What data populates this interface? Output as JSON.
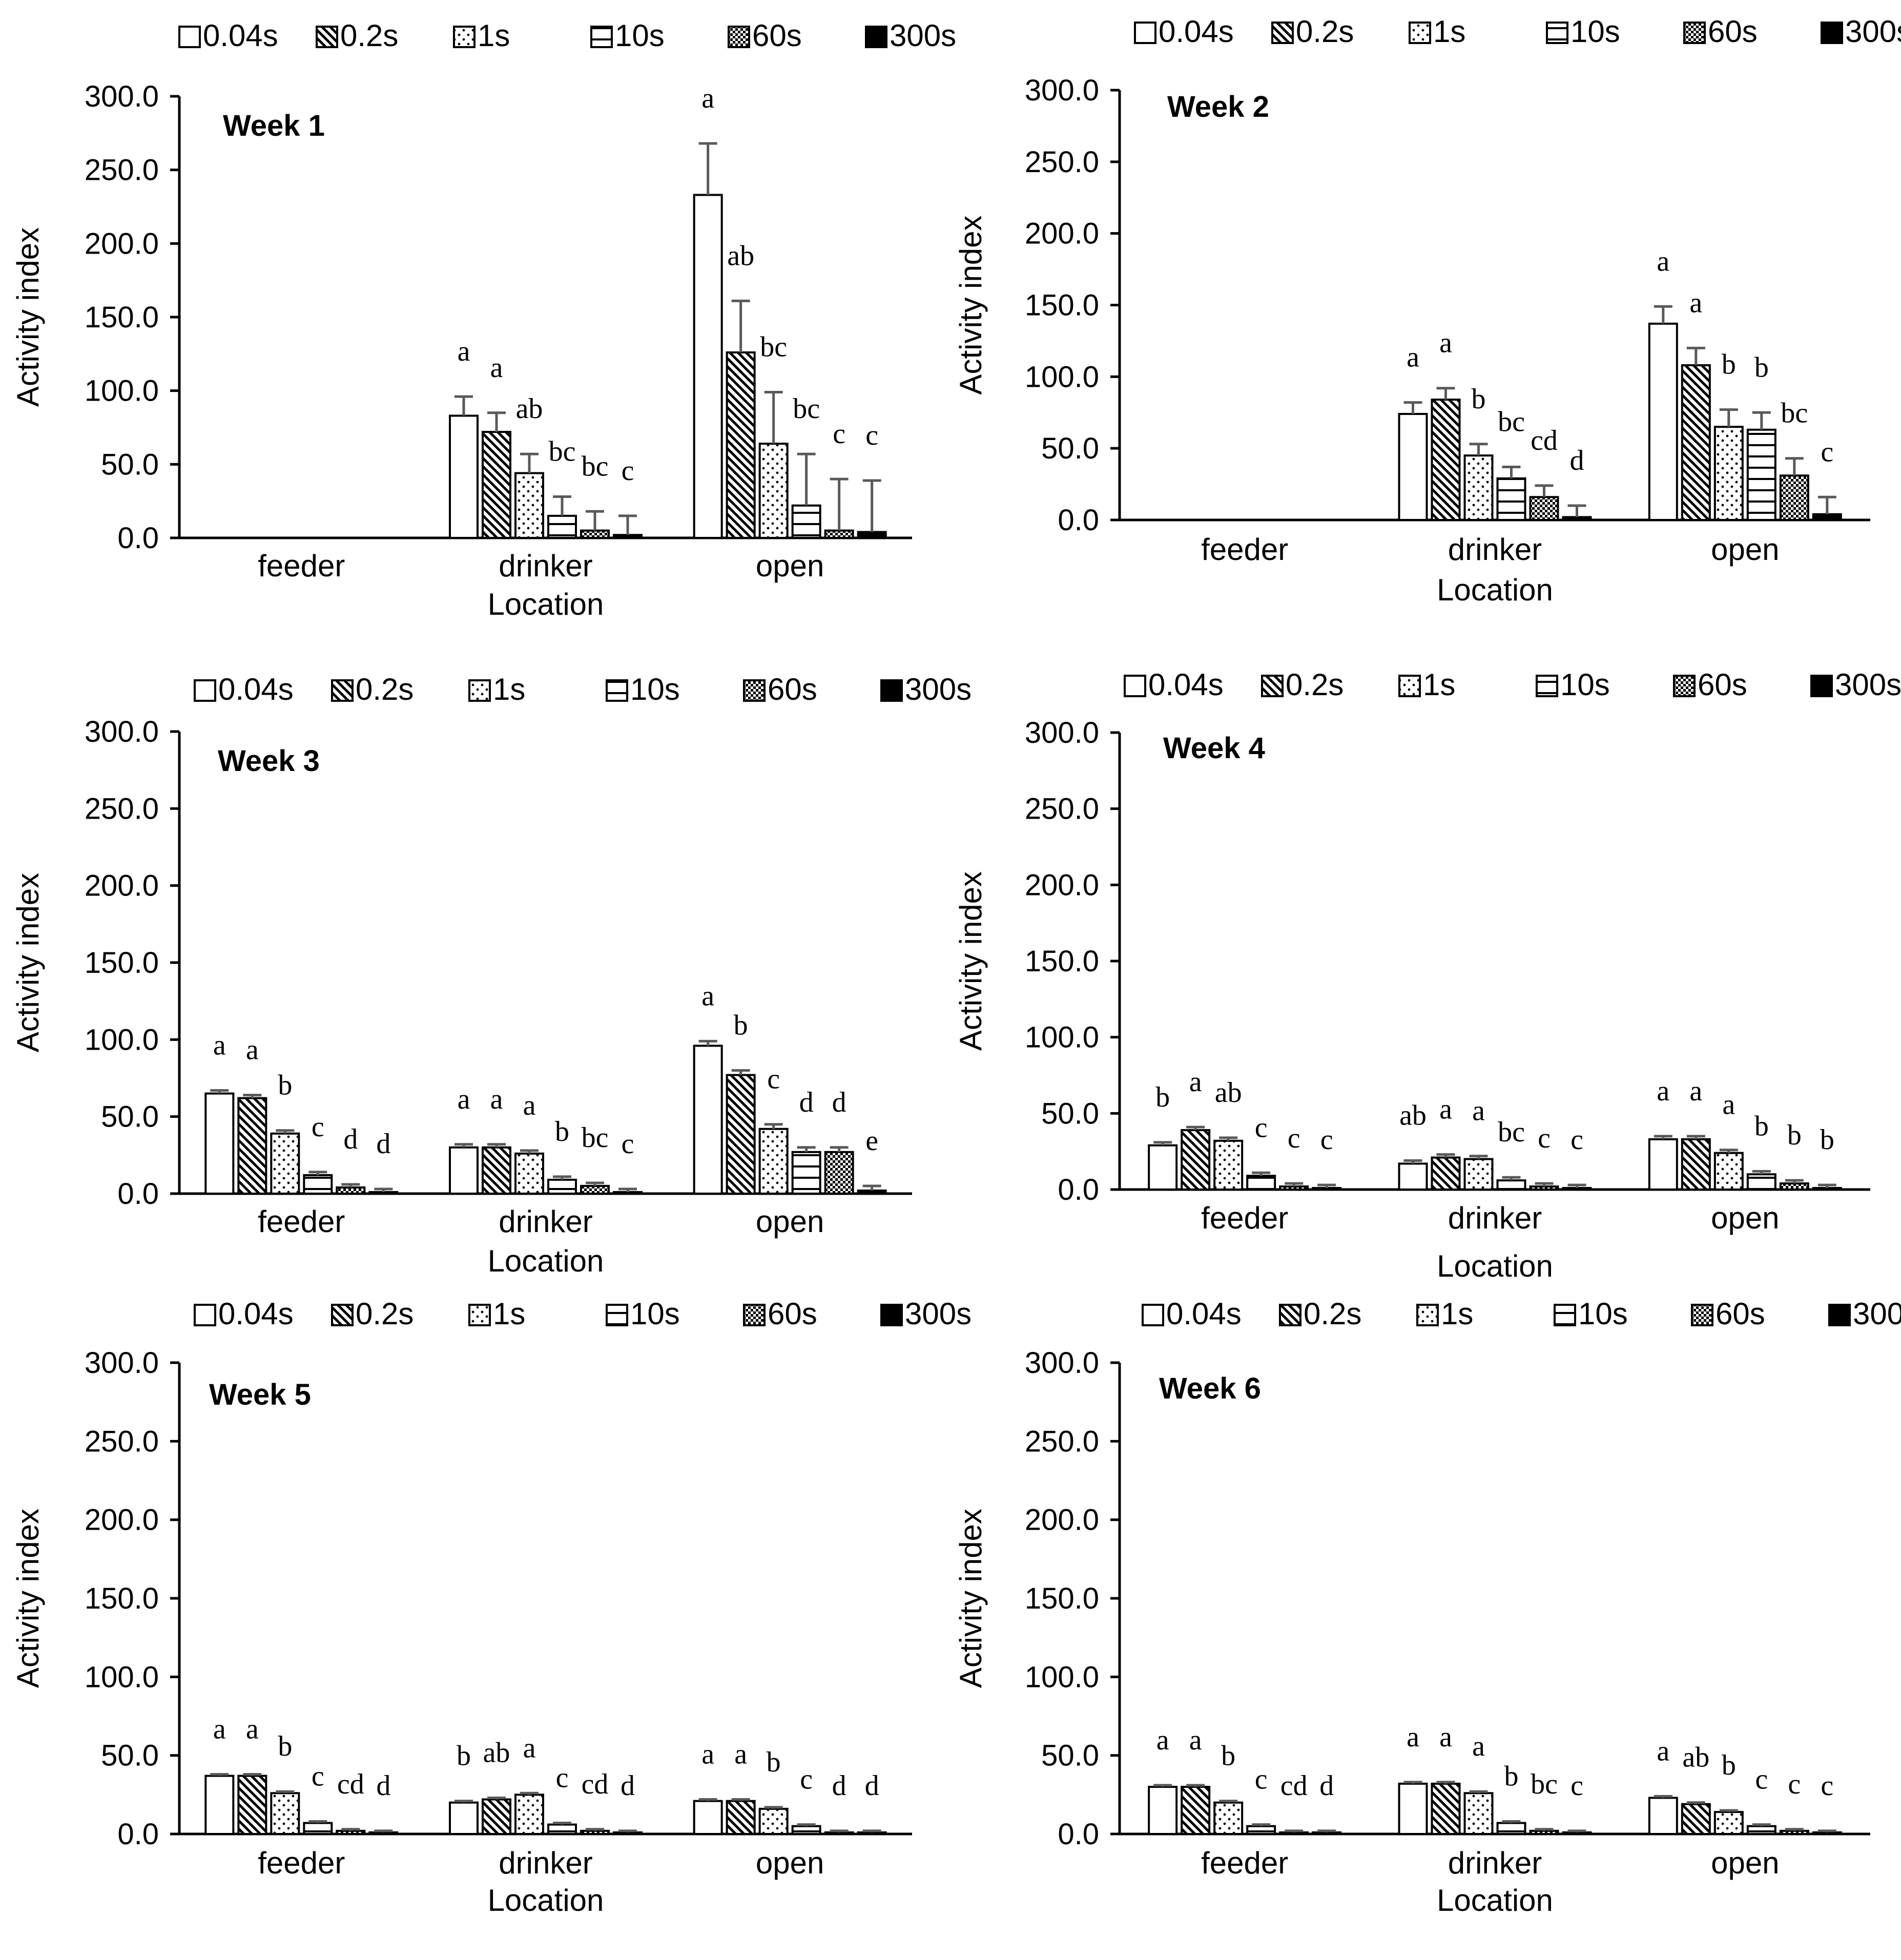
{
  "figure": {
    "y_axis_label": "Activity index",
    "x_axis_label": "Location"
  },
  "legend": [
    {
      "label": "0.04s",
      "pattern": "open"
    },
    {
      "label": "0.2s",
      "pattern": "diag"
    },
    {
      "label": "1s",
      "pattern": "dots"
    },
    {
      "label": "10s",
      "pattern": "hlines"
    },
    {
      "label": "60s",
      "pattern": "check"
    },
    {
      "label": "300s",
      "pattern": "solid"
    }
  ],
  "colors": {
    "bar_outline": "#000000",
    "error_bar": "#595959",
    "axis": "#000000",
    "background": "#ffffff"
  },
  "chart_data": [
    {
      "type": "bar",
      "title": "Week 1",
      "categories": [
        "feeder",
        "drinker",
        "open"
      ],
      "xlabel": "Location",
      "ylabel": "Activity index",
      "ylim": [
        0,
        300
      ],
      "yticks": [
        "0.0",
        "50.0",
        "100.0",
        "150.0",
        "200.0",
        "250.0",
        "300.0"
      ],
      "series": [
        {
          "name": "0.04s",
          "values": [
            0,
            83,
            233
          ],
          "errors": [
            0,
            13,
            35
          ]
        },
        {
          "name": "0.2s",
          "values": [
            0,
            72,
            126
          ],
          "errors": [
            0,
            13,
            35
          ]
        },
        {
          "name": "1s",
          "values": [
            0,
            44,
            64
          ],
          "errors": [
            0,
            13,
            35
          ]
        },
        {
          "name": "10s",
          "values": [
            0,
            15,
            22
          ],
          "errors": [
            0,
            13,
            35
          ]
        },
        {
          "name": "60s",
          "values": [
            0,
            5,
            5
          ],
          "errors": [
            0,
            13,
            35
          ]
        },
        {
          "name": "300s",
          "values": [
            0,
            2,
            4
          ],
          "errors": [
            0,
            13,
            35
          ]
        }
      ],
      "significance": [
        [
          "",
          "",
          "",
          "",
          "",
          ""
        ],
        [
          "a",
          "a",
          "ab",
          "bc",
          "bc",
          "c"
        ],
        [
          "a",
          "ab",
          "bc",
          "bc",
          "c",
          "c"
        ]
      ]
    },
    {
      "type": "bar",
      "title": "Week 2",
      "categories": [
        "feeder",
        "drinker",
        "open"
      ],
      "xlabel": "Location",
      "ylabel": "Activity index",
      "ylim": [
        0,
        300
      ],
      "yticks": [
        "0.0",
        "50.0",
        "100.0",
        "150.0",
        "200.0",
        "250.0",
        "300.0"
      ],
      "series": [
        {
          "name": "0.04s",
          "values": [
            0,
            74,
            137
          ],
          "errors": [
            0,
            8,
            12
          ]
        },
        {
          "name": "0.2s",
          "values": [
            0,
            84,
            108
          ],
          "errors": [
            0,
            8,
            12
          ]
        },
        {
          "name": "1s",
          "values": [
            0,
            45,
            65
          ],
          "errors": [
            0,
            8,
            12
          ]
        },
        {
          "name": "10s",
          "values": [
            0,
            29,
            63
          ],
          "errors": [
            0,
            8,
            12
          ]
        },
        {
          "name": "60s",
          "values": [
            0,
            16,
            31
          ],
          "errors": [
            0,
            8,
            12
          ]
        },
        {
          "name": "300s",
          "values": [
            0,
            2,
            4
          ],
          "errors": [
            0,
            8,
            12
          ]
        }
      ],
      "significance": [
        [
          "",
          "",
          "",
          "",
          "",
          ""
        ],
        [
          "a",
          "a",
          "b",
          "bc",
          "cd",
          "d"
        ],
        [
          "a",
          "a",
          "b",
          "b",
          "bc",
          "c"
        ]
      ]
    },
    {
      "type": "bar",
      "title": "Week 3",
      "categories": [
        "feeder",
        "drinker",
        "open"
      ],
      "xlabel": "Location",
      "ylabel": "Activity index",
      "ylim": [
        0,
        300
      ],
      "yticks": [
        "0.0",
        "50.0",
        "100.0",
        "150.0",
        "200.0",
        "250.0",
        "300.0"
      ],
      "series": [
        {
          "name": "0.04s",
          "values": [
            65,
            30,
            96
          ],
          "errors": [
            2,
            2,
            3
          ]
        },
        {
          "name": "0.2s",
          "values": [
            62,
            30,
            77
          ],
          "errors": [
            2,
            2,
            3
          ]
        },
        {
          "name": "1s",
          "values": [
            39,
            26,
            42
          ],
          "errors": [
            2,
            2,
            3
          ]
        },
        {
          "name": "10s",
          "values": [
            12,
            9,
            27
          ],
          "errors": [
            2,
            2,
            3
          ]
        },
        {
          "name": "60s",
          "values": [
            4,
            5,
            27
          ],
          "errors": [
            2,
            2,
            3
          ]
        },
        {
          "name": "300s",
          "values": [
            1,
            1,
            2
          ],
          "errors": [
            2,
            2,
            3
          ]
        }
      ],
      "significance": [
        [
          "a",
          "a",
          "b",
          "c",
          "d",
          "d"
        ],
        [
          "a",
          "a",
          "a",
          "b",
          "bc",
          "c"
        ],
        [
          "a",
          "b",
          "c",
          "d",
          "d",
          "e"
        ]
      ]
    },
    {
      "type": "bar",
      "title": "Week 4",
      "categories": [
        "feeder",
        "drinker",
        "open"
      ],
      "xlabel": "Location",
      "ylabel": "Activity index",
      "ylim": [
        0,
        300
      ],
      "yticks": [
        "0.0",
        "50.0",
        "100.0",
        "150.0",
        "200.0",
        "250.0",
        "300.0"
      ],
      "series": [
        {
          "name": "0.04s",
          "values": [
            29,
            17,
            33
          ],
          "errors": [
            2,
            2,
            2
          ]
        },
        {
          "name": "0.2s",
          "values": [
            39,
            21,
            33
          ],
          "errors": [
            2,
            2,
            2
          ]
        },
        {
          "name": "1s",
          "values": [
            32,
            20,
            24
          ],
          "errors": [
            2,
            2,
            2
          ]
        },
        {
          "name": "10s",
          "values": [
            9,
            6,
            10
          ],
          "errors": [
            2,
            2,
            2
          ]
        },
        {
          "name": "60s",
          "values": [
            2,
            2,
            4
          ],
          "errors": [
            2,
            2,
            2
          ]
        },
        {
          "name": "300s",
          "values": [
            1,
            1,
            1
          ],
          "errors": [
            2,
            2,
            2
          ]
        }
      ],
      "significance": [
        [
          "b",
          "a",
          "ab",
          "c",
          "c",
          "c"
        ],
        [
          "ab",
          "a",
          "a",
          "bc",
          "c",
          "c"
        ],
        [
          "a",
          "a",
          "a",
          "b",
          "b",
          "b"
        ]
      ]
    },
    {
      "type": "bar",
      "title": "Week 5",
      "categories": [
        "feeder",
        "drinker",
        "open"
      ],
      "xlabel": "Location",
      "ylabel": "Activity index",
      "ylim": [
        0,
        300
      ],
      "yticks": [
        "0.0",
        "50.0",
        "100.0",
        "150.0",
        "200.0",
        "250.0",
        "300.0"
      ],
      "series": [
        {
          "name": "0.04s",
          "values": [
            37,
            20,
            21
          ],
          "errors": [
            1,
            1,
            1
          ]
        },
        {
          "name": "0.2s",
          "values": [
            37,
            22,
            21
          ],
          "errors": [
            1,
            1,
            1
          ]
        },
        {
          "name": "1s",
          "values": [
            26,
            25,
            16
          ],
          "errors": [
            1,
            1,
            1
          ]
        },
        {
          "name": "10s",
          "values": [
            7,
            6,
            5
          ],
          "errors": [
            1,
            1,
            1
          ]
        },
        {
          "name": "60s",
          "values": [
            2,
            2,
            1
          ],
          "errors": [
            1,
            1,
            1
          ]
        },
        {
          "name": "300s",
          "values": [
            1,
            1,
            1
          ],
          "errors": [
            1,
            1,
            1
          ]
        }
      ],
      "significance": [
        [
          "a",
          "a",
          "b",
          "c",
          "cd",
          "d"
        ],
        [
          "b",
          "ab",
          "a",
          "c",
          "cd",
          "d"
        ],
        [
          "a",
          "a",
          "b",
          "c",
          "d",
          "d"
        ]
      ]
    },
    {
      "type": "bar",
      "title": "Week 6",
      "categories": [
        "feeder",
        "drinker",
        "open"
      ],
      "xlabel": "Location",
      "ylabel": "Activity index",
      "ylim": [
        0,
        300
      ],
      "yticks": [
        "0.0",
        "50.0",
        "100.0",
        "150.0",
        "200.0",
        "250.0",
        "300.0"
      ],
      "series": [
        {
          "name": "0.04s",
          "values": [
            30,
            32,
            23
          ],
          "errors": [
            1,
            1,
            1
          ]
        },
        {
          "name": "0.2s",
          "values": [
            30,
            32,
            19
          ],
          "errors": [
            1,
            1,
            1
          ]
        },
        {
          "name": "1s",
          "values": [
            20,
            26,
            14
          ],
          "errors": [
            1,
            1,
            1
          ]
        },
        {
          "name": "10s",
          "values": [
            5,
            7,
            5
          ],
          "errors": [
            1,
            1,
            1
          ]
        },
        {
          "name": "60s",
          "values": [
            1,
            2,
            2
          ],
          "errors": [
            1,
            1,
            1
          ]
        },
        {
          "name": "300s",
          "values": [
            1,
            1,
            1
          ],
          "errors": [
            1,
            1,
            1
          ]
        }
      ],
      "significance": [
        [
          "a",
          "a",
          "b",
          "c",
          "cd",
          "d"
        ],
        [
          "a",
          "a",
          "a",
          "b",
          "bc",
          "c"
        ],
        [
          "a",
          "ab",
          "b",
          "c",
          "c",
          "c"
        ]
      ]
    }
  ]
}
